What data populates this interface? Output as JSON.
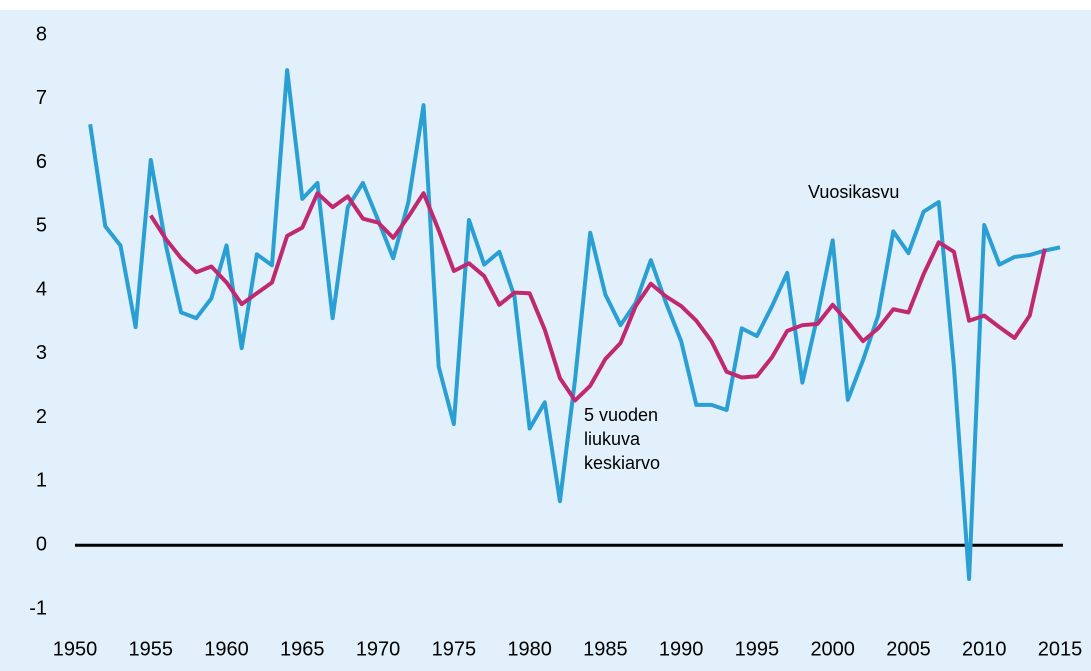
{
  "chart_data": {
    "type": "line",
    "x": [
      1951,
      1952,
      1953,
      1954,
      1955,
      1956,
      1957,
      1958,
      1959,
      1960,
      1961,
      1962,
      1963,
      1964,
      1965,
      1966,
      1967,
      1968,
      1969,
      1970,
      1971,
      1972,
      1973,
      1974,
      1975,
      1976,
      1977,
      1978,
      1979,
      1980,
      1981,
      1982,
      1983,
      1984,
      1985,
      1986,
      1987,
      1988,
      1989,
      1990,
      1991,
      1992,
      1993,
      1994,
      1995,
      1996,
      1997,
      1998,
      1999,
      2000,
      2001,
      2002,
      2003,
      2004,
      2005,
      2006,
      2007,
      2008,
      2009,
      2010,
      2011,
      2012,
      2013,
      2014,
      2015
    ],
    "series": [
      {
        "name": "Vuosikasvu",
        "color": "#2a9fd4",
        "values": [
          6.6,
          5.0,
          4.7,
          3.42,
          6.04,
          4.7,
          3.65,
          3.56,
          3.87,
          4.7,
          3.09,
          4.56,
          4.39,
          7.45,
          5.43,
          5.68,
          3.56,
          5.3,
          5.68,
          5.1,
          4.5,
          5.38,
          6.9,
          2.8,
          1.9,
          5.1,
          4.4,
          4.6,
          3.9,
          1.83,
          2.24,
          0.69,
          2.6,
          4.9,
          3.93,
          3.45,
          3.8,
          4.47,
          3.8,
          3.2,
          2.2,
          2.2,
          2.12,
          3.4,
          3.28,
          3.75,
          4.27,
          2.55,
          3.6,
          4.78,
          2.28,
          2.9,
          3.6,
          4.92,
          4.58,
          5.23,
          5.38,
          2.8,
          -0.53,
          5.02,
          4.4,
          4.52,
          4.55,
          4.62,
          4.67
        ]
      },
      {
        "name": "5 vuoden liukuva keskiarvo",
        "color": "#c0286f",
        "values": [
          null,
          null,
          null,
          null,
          5.17,
          4.8,
          4.5,
          4.28,
          4.37,
          4.12,
          3.78,
          3.95,
          4.12,
          4.85,
          4.98,
          5.52,
          5.3,
          5.47,
          5.12,
          5.06,
          4.82,
          5.15,
          5.52,
          4.94,
          4.3,
          4.42,
          4.22,
          3.77,
          3.96,
          3.95,
          3.38,
          2.62,
          2.27,
          2.5,
          2.92,
          3.17,
          3.75,
          4.1,
          3.9,
          3.75,
          3.52,
          3.2,
          2.72,
          2.63,
          2.65,
          2.95,
          3.36,
          3.45,
          3.47,
          3.77,
          3.5,
          3.2,
          3.4,
          3.7,
          3.65,
          4.25,
          4.75,
          4.6,
          3.52,
          3.6,
          3.42,
          3.25,
          3.6,
          4.65,
          null
        ]
      }
    ],
    "annotations": [
      [
        "Vuosikasvu"
      ],
      [
        "5 vuoden",
        "liukuva",
        "keskiarvo"
      ]
    ],
    "xlim": [
      1950,
      2015
    ],
    "xticks": [
      1950,
      1955,
      1960,
      1965,
      1970,
      1975,
      1980,
      1985,
      1990,
      1995,
      2000,
      2005,
      2010,
      2015
    ],
    "ylim": [
      -1,
      8
    ],
    "yticks": [
      -1,
      0,
      1,
      2,
      3,
      4,
      5,
      6,
      7,
      8
    ],
    "grid": false,
    "background": "#e1f0fa"
  }
}
